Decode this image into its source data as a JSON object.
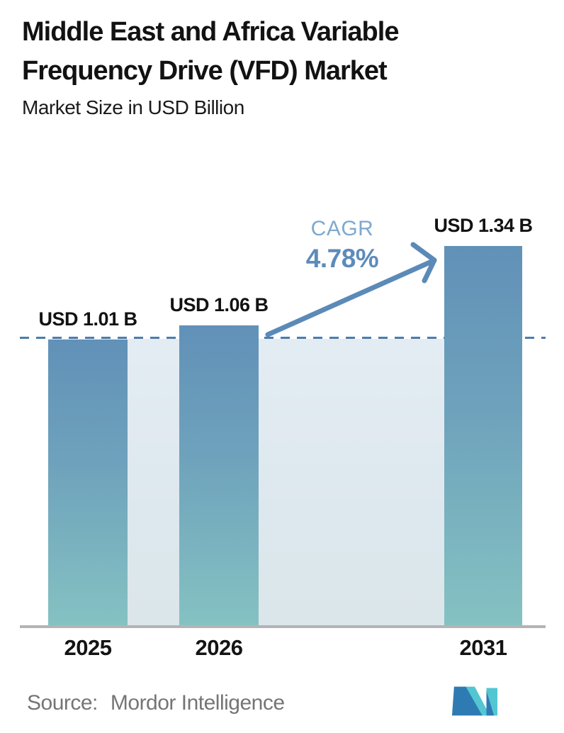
{
  "header": {
    "title": "Middle East and Africa Variable Frequency Drive (VFD) Market",
    "subtitle": "Market Size in USD Billion"
  },
  "chart_data": {
    "type": "bar",
    "categories": [
      "2025",
      "2026",
      "2031"
    ],
    "values": [
      1.01,
      1.06,
      1.34
    ],
    "unit": "USD Billion",
    "bar_labels": [
      "USD 1.01 B",
      "USD 1.06 B",
      "USD 1.34 B"
    ],
    "title": "Middle East and Africa Variable Frequency Drive (VFD) Market",
    "subtitle": "Market Size in USD Billion",
    "xlabel": "",
    "ylabel": "",
    "ylim": [
      0,
      1.34
    ],
    "gridlines": false,
    "legend": "none",
    "reference_line_value": 1.01,
    "annotation": {
      "label": "CAGR",
      "value": "4.78%"
    }
  },
  "footer": {
    "source_label": "Source:",
    "source_name": "Mordor Intelligence",
    "logo": "mordor-intelligence-logo"
  },
  "colors": {
    "bar_gradient_top": "#6191b8",
    "bar_gradient_bottom": "#85c2c2",
    "band": "#dfe9f0",
    "dashed_line": "#4d7dab",
    "arrow": "#5b8ab8",
    "cagr_label": "#7fa8cf",
    "cagr_value": "#5d8bba",
    "baseline": "#b4b4b4",
    "source_text": "#757575",
    "logo_blue": "#2e7bb4",
    "logo_teal": "#53c6d2",
    "title_text": "#121212"
  }
}
